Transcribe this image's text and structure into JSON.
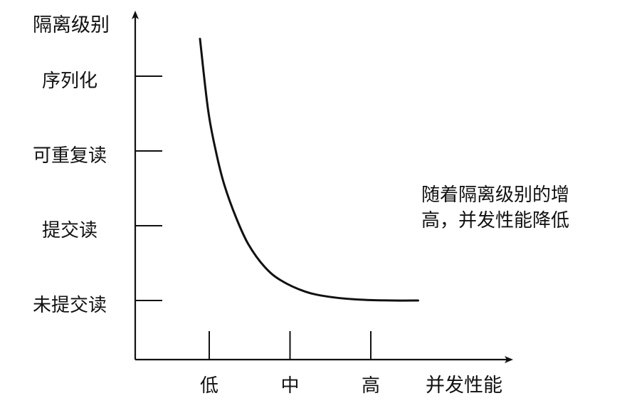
{
  "chart_data": {
    "type": "line",
    "title": "",
    "xlabel": "并发性能",
    "ylabel": "隔离级别",
    "categories_x": [
      "低",
      "中",
      "高"
    ],
    "categories_y": [
      "未提交读",
      "提交读",
      "可重复读",
      "序列化"
    ],
    "series": [
      {
        "x": [
          0.0,
          0.1,
          0.2,
          0.3,
          0.45,
          0.6,
          0.8,
          1.0,
          1.3,
          1.6,
          2.0,
          2.4,
          2.7
        ],
        "y": [
          3.5,
          2.55,
          1.98,
          1.55,
          1.1,
          0.75,
          0.45,
          0.27,
          0.12,
          0.05,
          0.01,
          0.0,
          0.0
        ]
      }
    ],
    "annotation": {
      "lines": [
        "随着隔离级别的增",
        "高，并发性能降低"
      ]
    },
    "grid": false,
    "legend": "none"
  },
  "colors": {
    "axis": "#111111",
    "curve": "#111111",
    "text": "#111111"
  }
}
